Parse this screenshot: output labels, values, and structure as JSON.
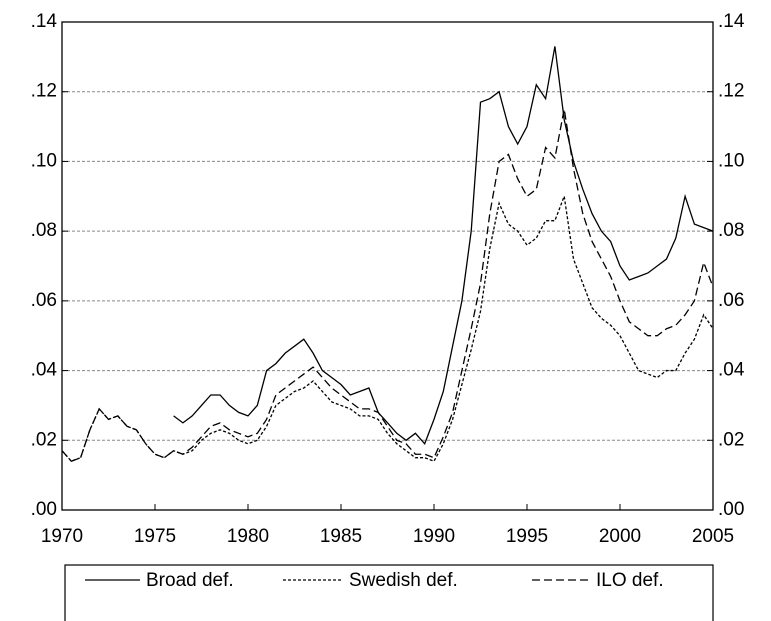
{
  "chart_data": {
    "type": "line",
    "x": [
      1970,
      1970.5,
      1971,
      1971.5,
      1972,
      1972.5,
      1973,
      1973.5,
      1974,
      1974.5,
      1975,
      1975.5,
      1976,
      1976.5,
      1977,
      1977.5,
      1978,
      1978.5,
      1979,
      1979.5,
      1980,
      1980.5,
      1981,
      1981.5,
      1982,
      1982.5,
      1983,
      1983.5,
      1984,
      1984.5,
      1985,
      1985.5,
      1986,
      1986.5,
      1987,
      1987.5,
      1988,
      1988.5,
      1989,
      1989.5,
      1990,
      1990.5,
      1991,
      1991.5,
      1992,
      1992.5,
      1993,
      1993.5,
      1994,
      1994.5,
      1995,
      1995.5,
      1996,
      1996.5,
      1997,
      1997.5,
      1998,
      1998.5,
      1999,
      1999.5,
      2000,
      2000.5,
      2001,
      2001.5,
      2002,
      2002.5,
      2003,
      2003.5,
      2004,
      2004.5,
      2005
    ],
    "series": [
      {
        "name": "Broad def.",
        "color": "#000000",
        "linestyle": "solid",
        "values": [
          null,
          null,
          null,
          null,
          null,
          null,
          null,
          null,
          null,
          null,
          null,
          null,
          0.027,
          0.025,
          0.027,
          0.03,
          0.033,
          0.033,
          0.03,
          0.028,
          0.027,
          0.03,
          0.04,
          0.042,
          0.045,
          0.047,
          0.049,
          0.045,
          0.04,
          0.038,
          0.036,
          0.033,
          0.034,
          0.035,
          0.028,
          0.025,
          0.022,
          0.02,
          0.022,
          0.019,
          0.026,
          0.034,
          0.047,
          0.06,
          0.08,
          0.117,
          0.118,
          0.12,
          0.11,
          0.105,
          0.11,
          0.122,
          0.118,
          0.133,
          0.112,
          0.1,
          0.092,
          0.085,
          0.08,
          0.077,
          0.07,
          0.066,
          0.067,
          0.068,
          0.07,
          0.072,
          0.078,
          0.09,
          0.082,
          0.081,
          0.08
        ]
      },
      {
        "name": "Swedish def.",
        "color": "#000000",
        "linestyle": "short-dash",
        "values": [
          0.017,
          0.014,
          0.015,
          0.023,
          0.029,
          0.026,
          0.027,
          0.024,
          0.023,
          0.019,
          0.016,
          0.015,
          0.017,
          0.016,
          0.017,
          0.02,
          0.022,
          0.023,
          0.022,
          0.02,
          0.019,
          0.02,
          0.024,
          0.03,
          0.032,
          0.034,
          0.035,
          0.037,
          0.034,
          0.031,
          0.03,
          0.029,
          0.027,
          0.027,
          0.026,
          0.022,
          0.019,
          0.017,
          0.015,
          0.015,
          0.014,
          0.019,
          0.026,
          0.036,
          0.046,
          0.057,
          0.075,
          0.088,
          0.082,
          0.08,
          0.076,
          0.078,
          0.083,
          0.083,
          0.09,
          0.072,
          0.065,
          0.058,
          0.055,
          0.053,
          0.05,
          0.045,
          0.04,
          0.039,
          0.038,
          0.04,
          0.04,
          0.045,
          0.049,
          0.056,
          0.052
        ]
      },
      {
        "name": "ILO def.",
        "color": "#000000",
        "linestyle": "long-dash",
        "values": [
          0.017,
          0.014,
          0.015,
          0.023,
          0.029,
          0.026,
          0.027,
          0.024,
          0.023,
          0.019,
          0.016,
          0.015,
          0.017,
          0.016,
          0.018,
          0.021,
          0.024,
          0.025,
          0.023,
          0.022,
          0.021,
          0.022,
          0.026,
          0.033,
          0.035,
          0.037,
          0.039,
          0.041,
          0.038,
          0.035,
          0.033,
          0.031,
          0.029,
          0.029,
          0.028,
          0.024,
          0.02,
          0.019,
          0.016,
          0.016,
          0.015,
          0.021,
          0.028,
          0.04,
          0.052,
          0.065,
          0.085,
          0.1,
          0.102,
          0.095,
          0.09,
          0.092,
          0.104,
          0.101,
          0.115,
          0.098,
          0.085,
          0.077,
          0.072,
          0.067,
          0.06,
          0.054,
          0.052,
          0.05,
          0.05,
          0.052,
          0.053,
          0.056,
          0.06,
          0.071,
          0.064
        ]
      }
    ],
    "xlim": [
      1970,
      2005
    ],
    "xticks": [
      1970,
      1975,
      1980,
      1985,
      1990,
      1995,
      2000,
      2005
    ],
    "ylim": [
      0,
      0.14
    ],
    "yticks": [
      {
        "value": 0,
        "label": ".00"
      },
      {
        "value": 0.02,
        "label": ".02"
      },
      {
        "value": 0.04,
        "label": ".04"
      },
      {
        "value": 0.06,
        "label": ".06"
      },
      {
        "value": 0.08,
        "label": ".08"
      },
      {
        "value": 0.1,
        "label": ".10"
      },
      {
        "value": 0.12,
        "label": ".12"
      },
      {
        "value": 0.14,
        "label": ".14"
      }
    ],
    "y2lim": [
      0,
      0.14
    ],
    "y2ticks": [
      {
        "value": 0,
        "label": ".00"
      },
      {
        "value": 0.02,
        "label": ".02"
      },
      {
        "value": 0.04,
        "label": ".04"
      },
      {
        "value": 0.06,
        "label": ".06"
      },
      {
        "value": 0.08,
        "label": ".08"
      },
      {
        "value": 0.1,
        "label": ".10"
      },
      {
        "value": 0.12,
        "label": ".12"
      },
      {
        "value": 0.14,
        "label": ".14"
      }
    ],
    "grid": true,
    "legend": "bottom"
  }
}
